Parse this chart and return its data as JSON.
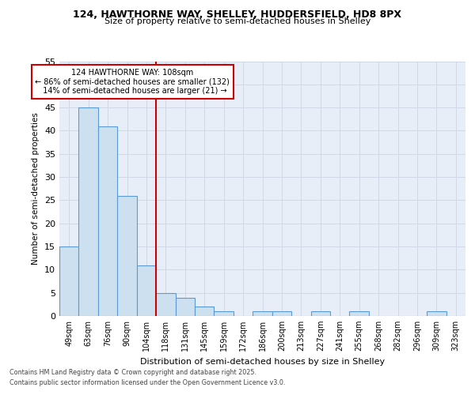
{
  "title_line1": "124, HAWTHORNE WAY, SHELLEY, HUDDERSFIELD, HD8 8PX",
  "title_line2": "Size of property relative to semi-detached houses in Shelley",
  "xlabel": "Distribution of semi-detached houses by size in Shelley",
  "ylabel_actual": "Number of semi-detached properties",
  "bins": [
    "49sqm",
    "63sqm",
    "76sqm",
    "90sqm",
    "104sqm",
    "118sqm",
    "131sqm",
    "145sqm",
    "159sqm",
    "172sqm",
    "186sqm",
    "200sqm",
    "213sqm",
    "227sqm",
    "241sqm",
    "255sqm",
    "268sqm",
    "282sqm",
    "296sqm",
    "309sqm",
    "323sqm"
  ],
  "values": [
    15,
    45,
    41,
    26,
    11,
    5,
    4,
    2,
    1,
    0,
    1,
    1,
    0,
    1,
    0,
    1,
    0,
    0,
    0,
    1,
    0
  ],
  "bar_color": "#cce0f0",
  "bar_edge_color": "#5b9bd5",
  "property_line_x": 4.5,
  "property_size": "108sqm",
  "pct_smaller": 86,
  "count_smaller": 132,
  "pct_larger": 14,
  "count_larger": 21,
  "annotation_box_color": "#cc0000",
  "vline_color": "#cc0000",
  "grid_color": "#d0d8e8",
  "background_color": "#e8eef8",
  "ylim": [
    0,
    55
  ],
  "yticks": [
    0,
    5,
    10,
    15,
    20,
    25,
    30,
    35,
    40,
    45,
    50,
    55
  ],
  "footer_line1": "Contains HM Land Registry data © Crown copyright and database right 2025.",
  "footer_line2": "Contains public sector information licensed under the Open Government Licence v3.0."
}
